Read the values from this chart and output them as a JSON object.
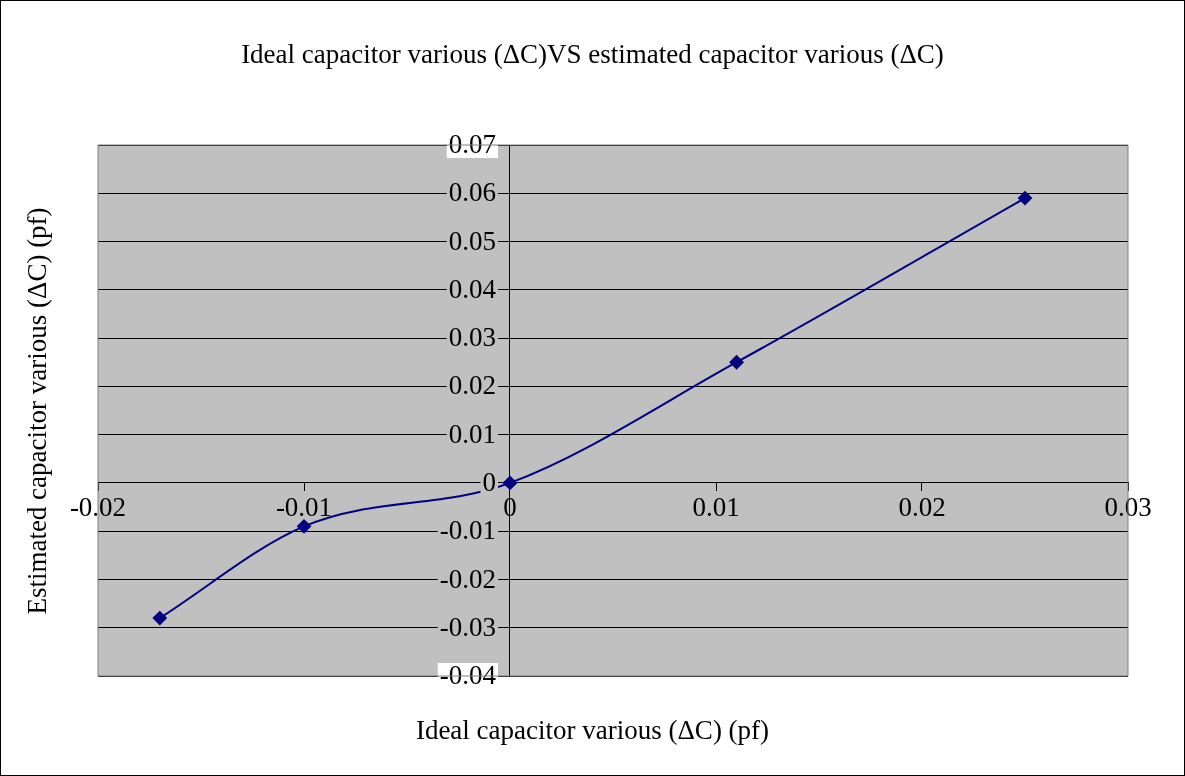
{
  "chart_data": {
    "type": "line",
    "title": "Ideal capacitor various (ΔC)VS estimated capacitor various (ΔC)",
    "xlabel": "Ideal capacitor various (ΔC) (pf)",
    "ylabel": "Estimated capacitor various (ΔC) (pf)",
    "series": [
      {
        "color": "#000080",
        "x": [
          -0.017,
          -0.01,
          0,
          0.011,
          0.025
        ],
        "values": [
          -0.028,
          -0.009,
          0,
          0.025,
          0.059
        ]
      }
    ],
    "xlim": [
      -0.02,
      0.03
    ],
    "xticks": [
      -0.02,
      -0.01,
      0,
      0.01,
      0.02,
      0.03
    ],
    "ylim": [
      -0.04,
      0.07
    ],
    "yticks": [
      -0.04,
      -0.03,
      -0.02,
      -0.01,
      0,
      0.01,
      0.02,
      0.03,
      0.04,
      0.05,
      0.06,
      0.07
    ],
    "grid": "y",
    "legend": false,
    "marker": "diamond",
    "line_style": "solid"
  }
}
